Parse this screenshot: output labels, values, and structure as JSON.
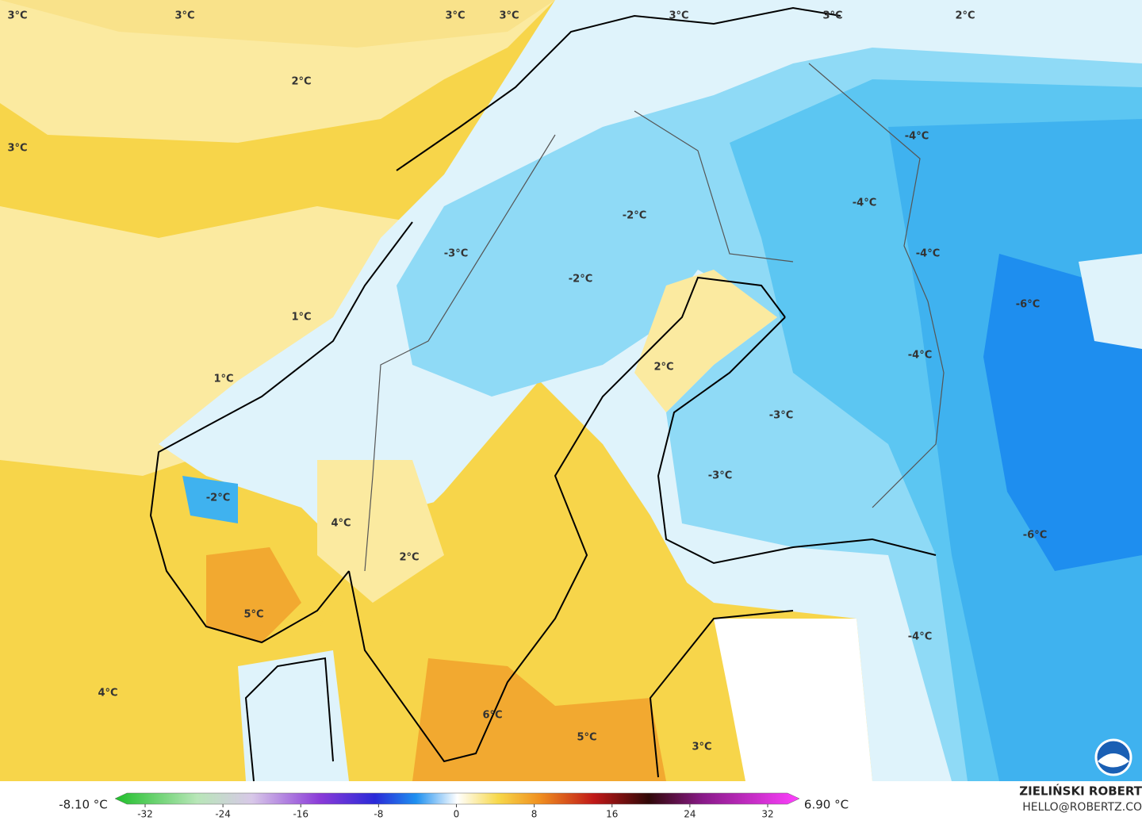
{
  "map": {
    "labels": [
      "3°C",
      "3°C",
      "3°C",
      "3°C",
      "3°C",
      "3°C",
      "2°C",
      "2°C",
      "3°C",
      "-2°C",
      "-4°C",
      "-4°C",
      "-3°C",
      "-4°C",
      "-2°C",
      "-6°C",
      "1°C",
      "-4°C",
      "2°C",
      "1°C",
      "-3°C",
      "-3°C",
      "-2°C",
      "4°C",
      "-6°C",
      "2°C",
      "5°C",
      "-4°C",
      "4°C",
      "6°C",
      "5°C",
      "3°C"
    ]
  },
  "legend": {
    "min": "-8.10 °C",
    "max": "6.90 °C",
    "ticks": [
      -32,
      -24,
      -16,
      -8,
      0,
      8,
      16,
      24,
      32
    ]
  },
  "credit": {
    "name": "ZIELIŃSKI ROBERT",
    "email": "HELLO@ROBERTZ.CO"
  }
}
